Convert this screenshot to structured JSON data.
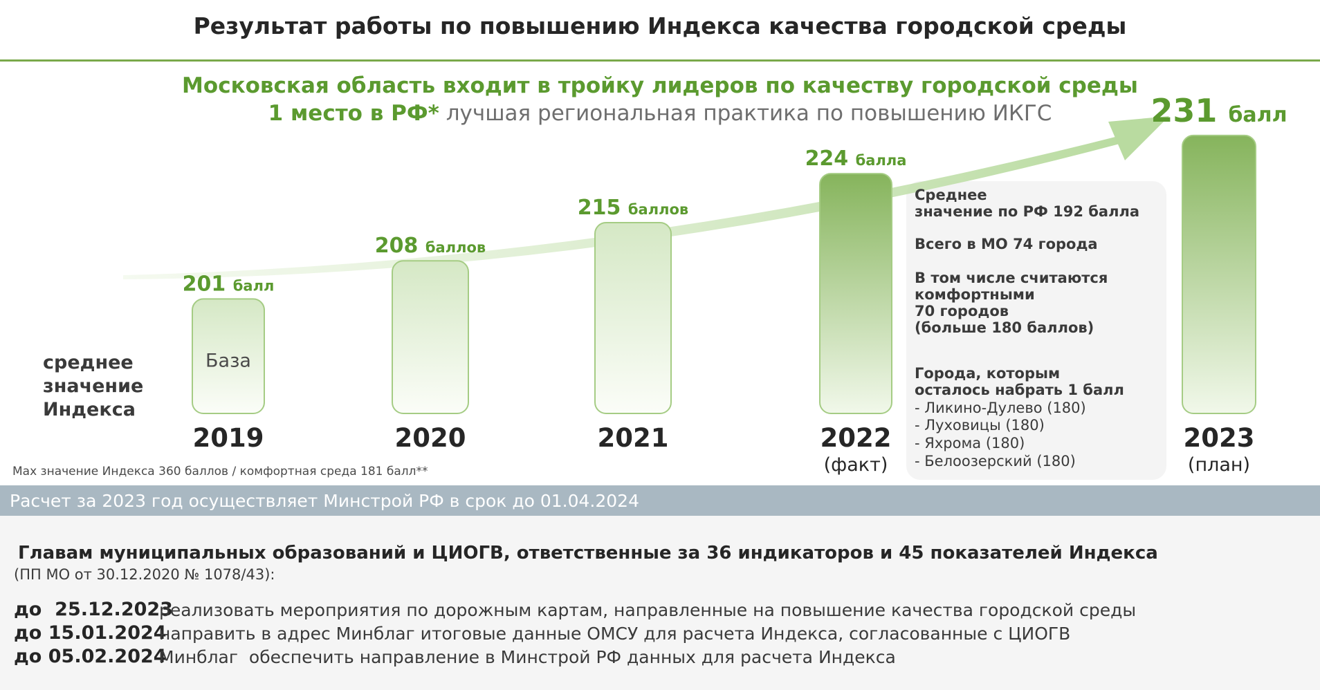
{
  "title": "Результат работы по повышению Индекса качества городской среды",
  "headline": "Московская область входит в тройку лидеров по качеству городской среды",
  "subline": {
    "strong": "1 место в РФ*",
    "rest": " лучшая региональная практика по повышению ИКГС"
  },
  "avg_label": [
    "среднее",
    "значение",
    "Индекса"
  ],
  "chart_data": {
    "type": "bar",
    "categories": [
      "2019",
      "2020",
      "2021",
      "2022",
      "2023"
    ],
    "values": [
      201,
      208,
      215,
      224,
      231
    ],
    "value_labels": [
      {
        "num": "201",
        "unit": "балл"
      },
      {
        "num": "208",
        "unit": "баллов"
      },
      {
        "num": "215",
        "unit": "баллов"
      },
      {
        "num": "224",
        "unit": "балла"
      },
      {
        "num": "231",
        "unit": "балл"
      }
    ],
    "year_notes": [
      "",
      "",
      "",
      "(факт)",
      "(план)"
    ],
    "bar_inner_labels": [
      "База",
      "",
      "",
      "",
      ""
    ],
    "ylim": [
      180,
      232
    ],
    "grid": false,
    "colors": {
      "bar_light": "#f4f9ef",
      "bar_mid": "#cfe4bd",
      "bar_dark": "#82b257",
      "bar_stroke": "#a5cc84",
      "value_text": "#5b9a2f",
      "arrow": "#bfe0a8"
    }
  },
  "info_panel": {
    "avg_rf": "Среднее\nзначение по РФ 192 балла",
    "total_cities": "Всего в МО 74 города",
    "comfortable": "В том числе считаются\nкомфортными\n70 городов\n(больше 180 баллов)",
    "remaining_heading": "Города, которым\nосталось набрать 1 балл",
    "remaining_cities": [
      "- Ликино-Дулево (180)",
      "- Луховицы (180)",
      "- Яхрома (180)",
      "- Белоозерский (180)"
    ]
  },
  "max_note": "Max значение Индекса 360 баллов / комфортная среда 181 балл**",
  "banner": "Расчет за 2023 год осуществляет Минстрой РФ в срок до 01.04.2024",
  "lower": {
    "heading": "Главам муниципальных образований и ЦИОГВ, ответственные за 36 индикаторов и 45 показателей Индекса",
    "subheading": "(ПП МО от 30.12.2020 № 1078/43):",
    "rows": [
      {
        "date": "до  25.12.2023",
        "text": "реализовать мероприятия по дорожным картам, направленные на повышение качества городской среды"
      },
      {
        "date": "до 15.01.2024",
        "text": "направить в адрес Минблаг итоговые данные ОМСУ для расчета Индекса, согласованные с ЦИОГВ"
      },
      {
        "date": "до 05.02.2024",
        "text": "Минблаг  обеспечить направление в Минстрой РФ данных для расчета Индекса"
      }
    ]
  }
}
